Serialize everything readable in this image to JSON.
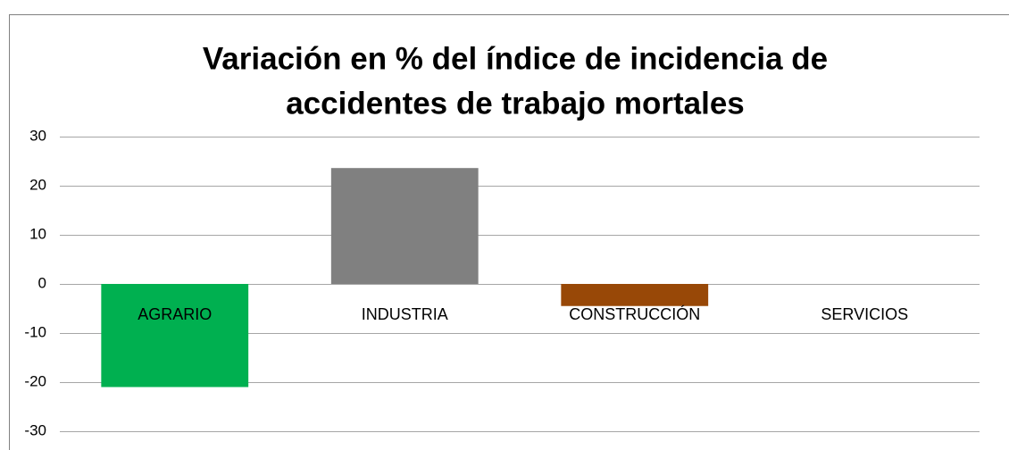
{
  "chart_data": {
    "type": "bar",
    "title": [
      "Variación en % del índice de incidencia de",
      "accidentes de trabajo mortales"
    ],
    "categories": [
      "AGRARIO",
      "INDUSTRIA",
      "CONSTRUCCIÓN",
      "SERVICIOS"
    ],
    "values": [
      -21,
      23.6,
      -4.5,
      0
    ],
    "colors": [
      "#00b050",
      "#808080",
      "#984807",
      "#4472c4"
    ],
    "ylim": [
      -30,
      30
    ],
    "yticks": [
      -30,
      -20,
      -10,
      0,
      10,
      20,
      30
    ],
    "grid": true
  }
}
